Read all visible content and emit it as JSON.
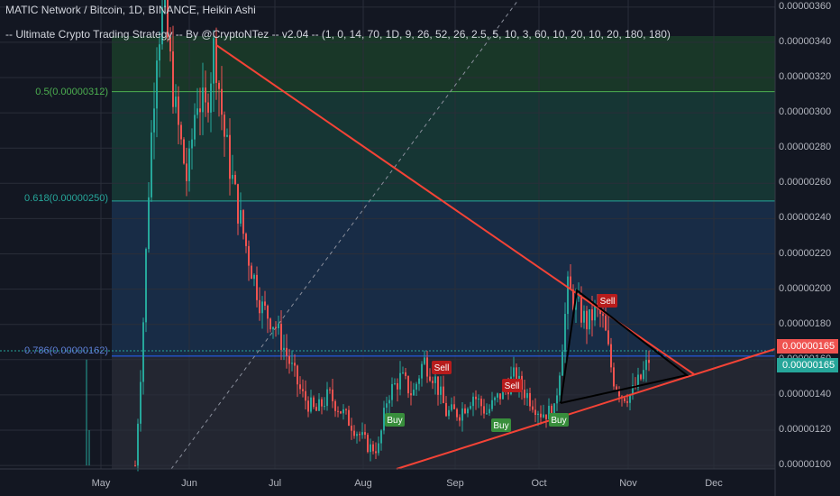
{
  "header": {
    "symbol_line": "MATIC Network / Bitcoin, 1D, BINANCE, Heikin Ashi",
    "indicator_line": "-- Ultimate Crypto Trading Strategy -- By @CryptoNTez -- v2.04 -- (1, 0, 14, 70, 1D, 9, 26, 52, 26, 2.5, 5, 10, 3, 60, 10, 20, 10, 20, 180, 180)"
  },
  "fib_levels": [
    {
      "label": "0.5(0.00000312)",
      "value": 3.12e-06,
      "color": "#4caf50"
    },
    {
      "label": "0.618(0.00000250)",
      "value": 2.5e-06,
      "color": "#26a69a"
    },
    {
      "label": "0.786(0.00000162)",
      "value": 1.62e-06,
      "color": "#2962ff"
    }
  ],
  "price_axis": {
    "ticks": [
      "0.00000360",
      "0.00000340",
      "0.00000320",
      "0.00000300",
      "0.00000280",
      "0.00000260",
      "0.00000240",
      "0.00000220",
      "0.00000200",
      "0.00000180",
      "0.00000160",
      "0.00000140",
      "0.00000120",
      "0.00000100"
    ],
    "last_price_1": "0.00000165",
    "last_price_2": "0.00000165"
  },
  "time_axis": {
    "ticks": [
      "May",
      "Jun",
      "Jul",
      "Aug",
      "Sep",
      "Oct",
      "Nov",
      "Dec"
    ]
  },
  "signals": [
    {
      "label": "Sell",
      "type": "sell"
    },
    {
      "label": "Sell",
      "type": "sell"
    },
    {
      "label": "Sell",
      "type": "sell"
    },
    {
      "label": "Buy",
      "type": "buy"
    },
    {
      "label": "Buy",
      "type": "buy"
    },
    {
      "label": "Buy",
      "type": "buy"
    }
  ],
  "colors": {
    "background": "#131722",
    "up_candle": "#26a69a",
    "down_candle": "#ef5350",
    "trendline": "#f44336",
    "buy": "#388e3c",
    "sell": "#b71c1c"
  },
  "chart_data": {
    "type": "candlestick",
    "title": "MATIC Network / Bitcoin, 1D, BINANCE, Heikin Ashi",
    "ylim": [
      9.8e-07,
      3.64e-06
    ],
    "x_ticks": [
      "May",
      "Jun",
      "Jul",
      "Aug",
      "Sep",
      "Oct",
      "Nov",
      "Dec"
    ],
    "y_ticks": [
      3.6e-06,
      3.4e-06,
      3.2e-06,
      3e-06,
      2.8e-06,
      2.6e-06,
      2.4e-06,
      2.2e-06,
      2e-06,
      1.8e-06,
      1.6e-06,
      1.4e-06,
      1.2e-06,
      1e-06
    ],
    "price_path": [
      [
        "May 16",
        1e-06
      ],
      [
        "May 18",
        1.8e-06
      ],
      [
        "May 20",
        3.3e-06
      ],
      [
        "May 22",
        3.6e-06
      ],
      [
        "Jun 01",
        3e-06
      ],
      [
        "Jun 05",
        2.5e-06
      ],
      [
        "Jun 10",
        3.4e-06
      ],
      [
        "Jun 15",
        2.7e-06
      ],
      [
        "Jun 25",
        2.4e-06
      ],
      [
        "Jul 05",
        1.7e-06
      ],
      [
        "Jul 15",
        1.5e-06
      ],
      [
        "Jul 25",
        1.4e-06
      ],
      [
        "Aug 01",
        1.1e-06
      ],
      [
        "Aug 05",
        1.5e-06
      ],
      [
        "Aug 15",
        1.6e-06
      ],
      [
        "Aug 25",
        1.3e-06
      ],
      [
        "Sep 05",
        1.3e-06
      ],
      [
        "Sep 15",
        1.45e-06
      ],
      [
        "Sep 25",
        1.35e-06
      ],
      [
        "Oct 05",
        1.25e-06
      ],
      [
        "Oct 10",
        2e-06
      ],
      [
        "Oct 15",
        1.85e-06
      ],
      [
        "Oct 22",
        1.75e-06
      ],
      [
        "Oct 26",
        1.4e-06
      ],
      [
        "Nov 01",
        1.45e-06
      ],
      [
        "Nov 05",
        1.65e-06
      ]
    ],
    "last_price": 1.65e-06
  }
}
